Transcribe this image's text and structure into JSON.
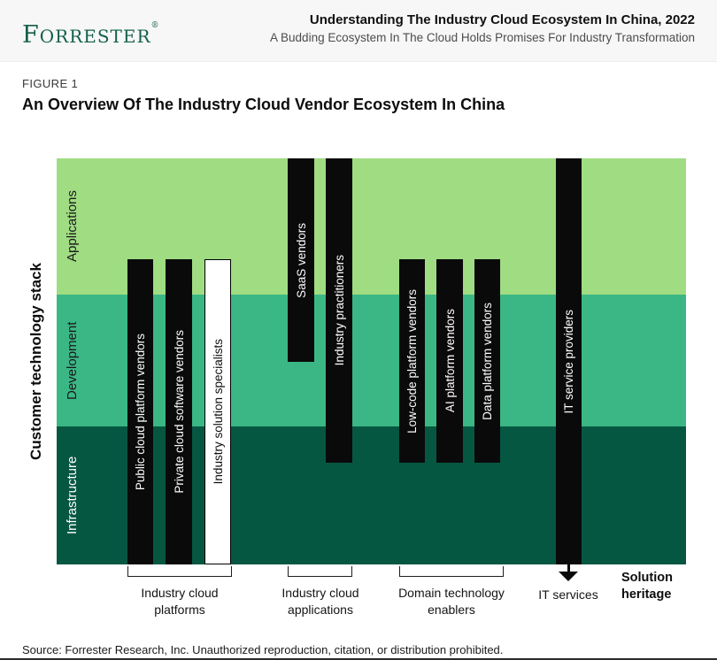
{
  "header": {
    "logo_first": "F",
    "logo_rest": "ORRESTER",
    "logo_reg": "®",
    "report_title": "Understanding The Industry Cloud Ecosystem In China, 2022",
    "report_subtitle": "A Budding Ecosystem In The Cloud Holds Promises For Industry Transformation"
  },
  "figure": {
    "label": "FIGURE 1",
    "title": "An Overview Of The Industry Cloud Vendor Ecosystem In China"
  },
  "stack_axis_label": "Customer technology stack",
  "layers": [
    {
      "name": "Applications",
      "color": "#9fdc82",
      "text_color": "#1a1a1a"
    },
    {
      "name": "Development",
      "color": "#3bb786",
      "text_color": "#1a1a1a"
    },
    {
      "name": "Infrastructure",
      "color": "#065742",
      "text_color": "#ffffff"
    }
  ],
  "vendors": [
    {
      "name": "Public cloud platform vendors",
      "bar_style": "solid-black",
      "coverage": "lower Applications through Infrastructure"
    },
    {
      "name": "Private cloud software vendors",
      "bar_style": "solid-black",
      "coverage": "lower Applications through Infrastructure"
    },
    {
      "name": "Industry solution specialists",
      "bar_style": "white-outline",
      "coverage": "lower Applications through Infrastructure"
    },
    {
      "name": "SaaS vendors",
      "bar_style": "solid-black",
      "coverage": "Applications into upper Development"
    },
    {
      "name": "Industry practitioners",
      "bar_style": "solid-black",
      "coverage": "Applications into upper Infrastructure"
    },
    {
      "name": "Low-code platform vendors",
      "bar_style": "solid-black",
      "coverage": "lower Applications into upper Infrastructure"
    },
    {
      "name": "AI platform vendors",
      "bar_style": "solid-black",
      "coverage": "lower Applications into upper Infrastructure"
    },
    {
      "name": "Data platform vendors",
      "bar_style": "solid-black",
      "coverage": "lower Applications into upper Infrastructure"
    },
    {
      "name": "IT service providers",
      "bar_style": "solid-black",
      "coverage": "Applications through Infrastructure, arrow continues below chart"
    }
  ],
  "solution_groups": [
    {
      "line1": "Industry cloud",
      "line2": "platforms"
    },
    {
      "line1": "Industry cloud",
      "line2": "applications"
    },
    {
      "line1": "Domain technology",
      "line2": "enablers"
    },
    {
      "line1": "IT services",
      "line2": ""
    }
  ],
  "solution_heritage": {
    "line1": "Solution",
    "line2": "heritage"
  },
  "source": "Source: Forrester Research, Inc. Unauthorized reproduction, citation, or distribution prohibited.",
  "colors": {
    "brand_green": "#14604b",
    "bar_black": "#0a0a0a",
    "header_bg": "#f7f7f7"
  }
}
